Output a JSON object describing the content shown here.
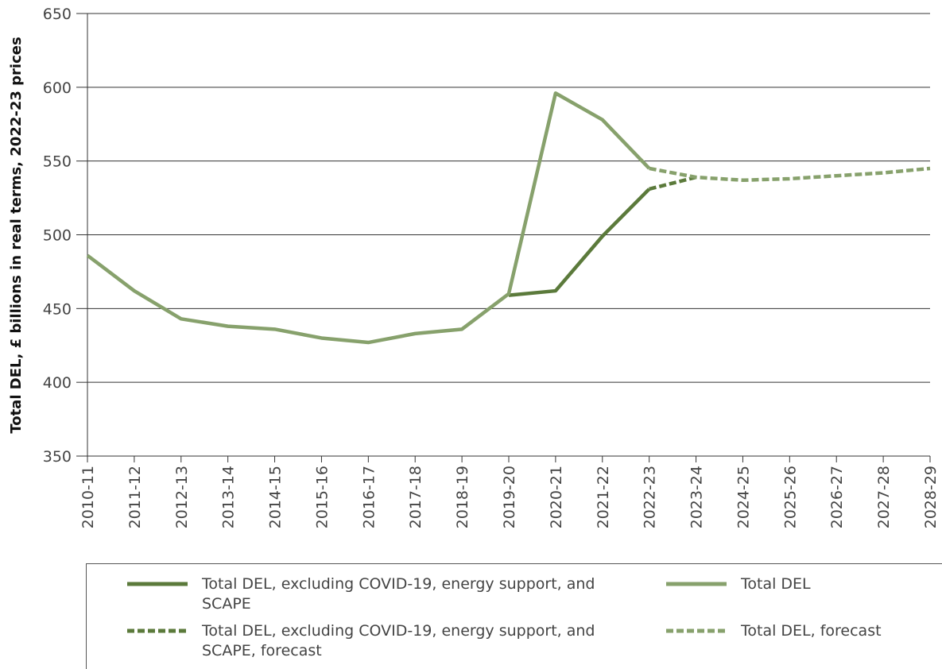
{
  "chart_data": {
    "type": "line",
    "y_label": "Total DEL, £ billions in real terms, 2022-23 prices",
    "categories": [
      "2010-11",
      "2011-12",
      "2012-13",
      "2013-14",
      "2014-15",
      "2015-16",
      "2016-17",
      "2017-18",
      "2018-19",
      "2019-20",
      "2020-21",
      "2021-22",
      "2022-23",
      "2023-24",
      "2024-25",
      "2025-26",
      "2026-27",
      "2027-28",
      "2028-29"
    ],
    "series": [
      {
        "name": "Total DEL, excluding COVID-19, energy support, and SCAPE",
        "color": "#5b7a3b",
        "dashed": false,
        "values": [
          null,
          null,
          null,
          null,
          null,
          null,
          null,
          null,
          null,
          459,
          462,
          499,
          531,
          null,
          null,
          null,
          null,
          null,
          null
        ]
      },
      {
        "name": "Total DEL",
        "color": "#87a16c",
        "dashed": false,
        "values": [
          486,
          462,
          443,
          438,
          436,
          430,
          427,
          433,
          436,
          460,
          596,
          578,
          545,
          null,
          null,
          null,
          null,
          null,
          null
        ]
      },
      {
        "name": "Total DEL, excluding COVID-19, energy support, and SCAPE, forecast",
        "color": "#5b7a3b",
        "dashed": true,
        "values": [
          null,
          null,
          null,
          null,
          null,
          null,
          null,
          null,
          null,
          null,
          null,
          null,
          531,
          539,
          null,
          null,
          null,
          null,
          null
        ]
      },
      {
        "name": "Total DEL, forecast",
        "color": "#87a16c",
        "dashed": true,
        "values": [
          null,
          null,
          null,
          null,
          null,
          null,
          null,
          null,
          null,
          null,
          null,
          null,
          545,
          539,
          537,
          538,
          540,
          542,
          545
        ]
      }
    ],
    "ylim": [
      350,
      650
    ],
    "yticks": [
      350,
      400,
      450,
      500,
      550,
      600,
      650
    ],
    "grid": true
  }
}
